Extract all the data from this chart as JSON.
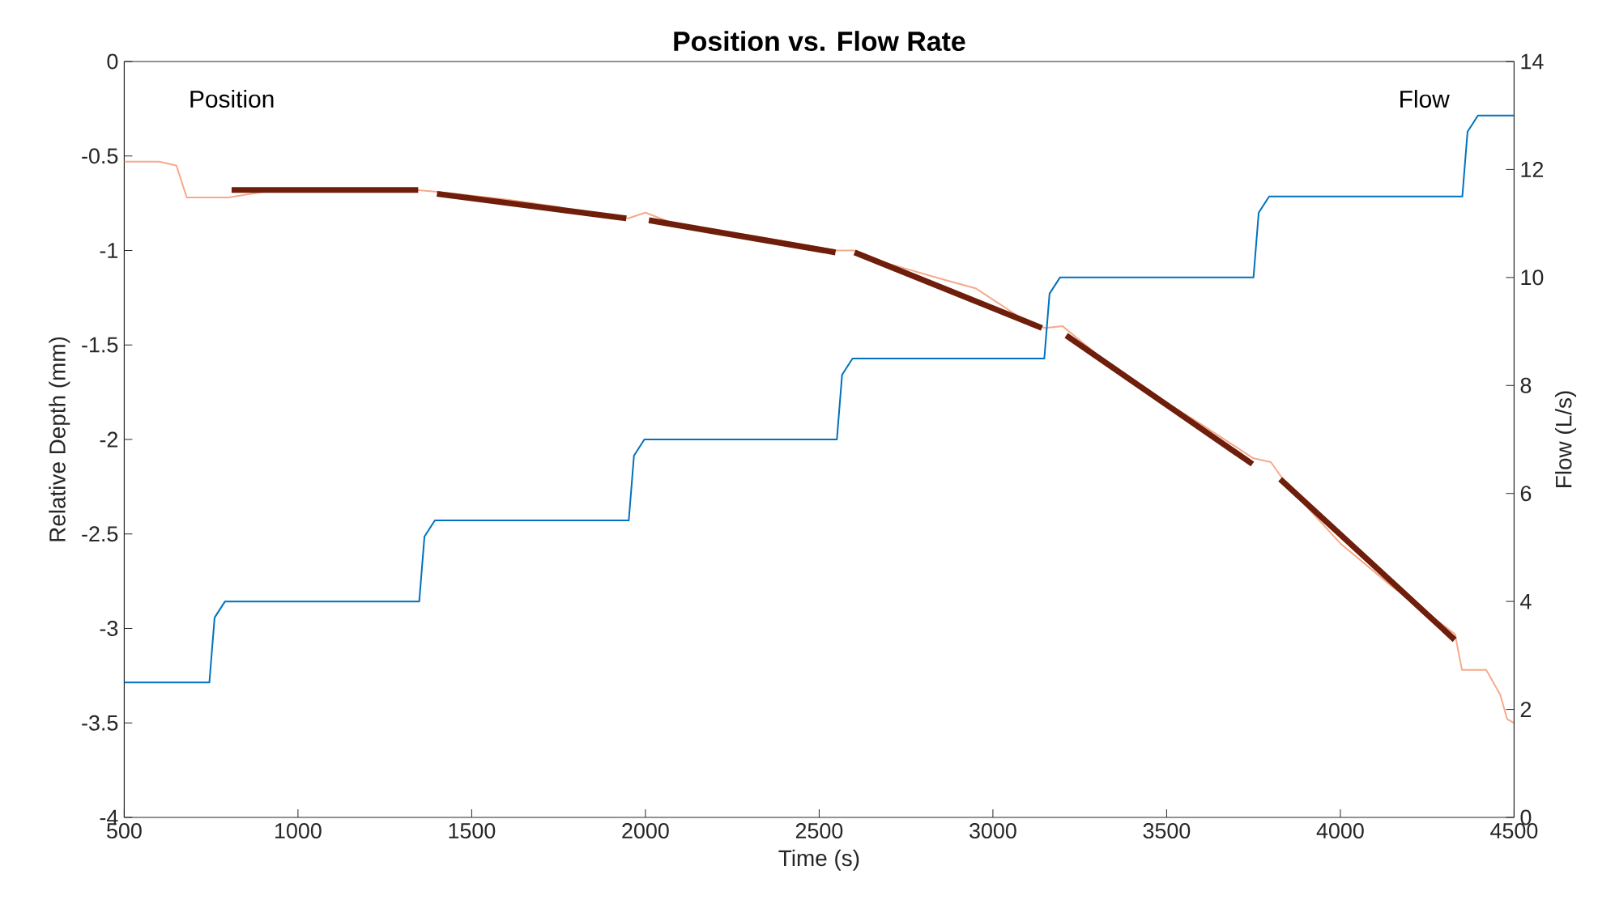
{
  "chart_data": {
    "type": "line",
    "title": "Position vs. Flow Rate",
    "xlabel": "Time (s)",
    "ylabel": "Relative Depth (mm)",
    "y2label": "Flow (L/s)",
    "xlim": [
      500,
      4500
    ],
    "xticks": [
      500,
      1000,
      1500,
      2000,
      2500,
      3000,
      3500,
      4000,
      4500
    ],
    "ylim": [
      -4,
      0
    ],
    "yticks": [
      -4,
      -3.5,
      -3,
      -2.5,
      -2,
      -1.5,
      -1,
      -0.5,
      0
    ],
    "y2lim": [
      0,
      14
    ],
    "y2ticks": [
      0,
      2,
      4,
      6,
      8,
      10,
      12,
      14
    ],
    "series": [
      {
        "name": "Position",
        "color": "#f7a98b",
        "x": [
          500,
          600,
          650,
          680,
          800,
          900,
          1100,
          1340,
          1400,
          1600,
          1750,
          1800,
          1950,
          2000,
          2100,
          2300,
          2550,
          2600,
          2700,
          2850,
          2950,
          3100,
          3150,
          3200,
          3300,
          3450,
          3600,
          3750,
          3800,
          3850,
          4000,
          4150,
          4330,
          4350,
          4420,
          4460,
          4480,
          4500
        ],
        "values": [
          -0.53,
          -0.53,
          -0.55,
          -0.72,
          -0.72,
          -0.69,
          -0.68,
          -0.68,
          -0.69,
          -0.73,
          -0.77,
          -0.8,
          -0.83,
          -0.8,
          -0.87,
          -0.92,
          -1.0,
          -1.0,
          -1.07,
          -1.15,
          -1.2,
          -1.38,
          -1.41,
          -1.4,
          -1.55,
          -1.75,
          -1.92,
          -2.1,
          -2.12,
          -2.25,
          -2.55,
          -2.78,
          -3.03,
          -3.22,
          -3.22,
          -3.35,
          -3.48,
          -3.5
        ]
      },
      {
        "color": "#6e1e0a",
        "x": [
          809,
          1346,
          1375,
          1400,
          1945,
          1980,
          2010,
          2547,
          2575,
          2602,
          3141,
          3175,
          3211,
          3747,
          3790,
          3827,
          4329
        ],
        "values": [
          -0.68,
          -0.68,
          null,
          -0.7,
          -0.83,
          null,
          -0.84,
          -1.01,
          null,
          -1.01,
          -1.41,
          null,
          -1.45,
          -2.13,
          null,
          -2.21,
          -3.06
        ]
      },
      {
        "name": "Flow",
        "color": "#0072bd",
        "axis": "y2",
        "x": [
          500,
          745,
          760,
          790,
          1349,
          1364,
          1394,
          1952,
          1967,
          1997,
          2551,
          2566,
          2596,
          3148,
          3163,
          3193,
          3750,
          3765,
          3795,
          4351,
          4366,
          4396,
          4500
        ],
        "values": [
          2.5,
          2.5,
          3.7,
          4.0,
          4.0,
          5.2,
          5.5,
          5.5,
          6.7,
          7.0,
          7.0,
          8.2,
          8.5,
          8.5,
          9.7,
          10.0,
          10.0,
          11.2,
          11.5,
          11.5,
          12.7,
          13.0,
          13.0
        ]
      }
    ]
  }
}
